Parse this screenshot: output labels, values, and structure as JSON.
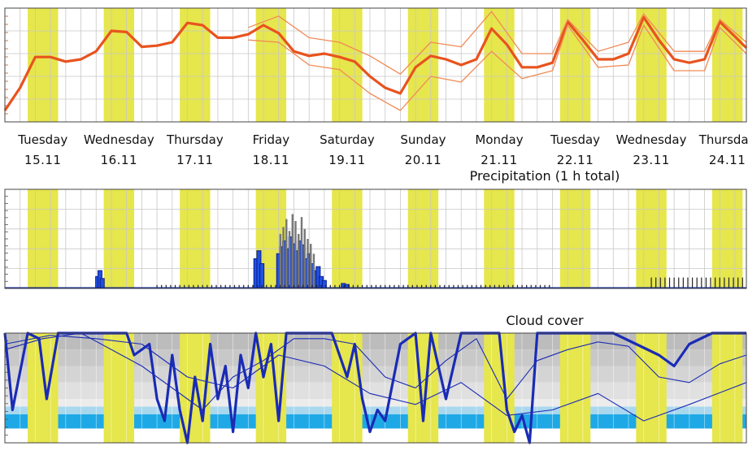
{
  "colors": {
    "daytime_band": "#e6e64d",
    "temperature_main": "#e8531e",
    "temperature_spread": "#f08a55",
    "precip_dark": "#0b1f8f",
    "precip_mid": "#2050e0",
    "precip_gray": "#777777",
    "cloud_main": "#1a2bb5",
    "cloud_low": "#1ea9e6",
    "cloud_mid": "#a9d8ee",
    "cloud_high": "#c9c9c9",
    "grid": "#c8c8c8"
  },
  "days": [
    {
      "name": "Tuesday",
      "date": "15.11"
    },
    {
      "name": "Wednesday",
      "date": "16.11"
    },
    {
      "name": "Thursday",
      "date": "17.11"
    },
    {
      "name": "Friday",
      "date": "18.11"
    },
    {
      "name": "Saturday",
      "date": "19.11"
    },
    {
      "name": "Sunday",
      "date": "20.11"
    },
    {
      "name": "Monday",
      "date": "21.11"
    },
    {
      "name": "Tuesday",
      "date": "22.11"
    },
    {
      "name": "Wednesday",
      "date": "23.11"
    },
    {
      "name": "Thursday",
      "date": "24.11"
    }
  ],
  "chart_data": [
    {
      "type": "line",
      "title": "",
      "x_unit": "day index (0 = 15.11 00:00)",
      "xlim": [
        0,
        9.75
      ],
      "ylim": [
        0,
        1
      ],
      "grid": true,
      "daytime_bands": [
        [
          0.3,
          0.7
        ],
        [
          1.3,
          1.7
        ],
        [
          2.3,
          2.7
        ],
        [
          3.3,
          3.7
        ],
        [
          4.3,
          4.7
        ],
        [
          5.3,
          5.7
        ],
        [
          6.3,
          6.7
        ],
        [
          7.3,
          7.7
        ],
        [
          8.3,
          8.7
        ],
        [
          9.3,
          9.7
        ]
      ],
      "series": [
        {
          "role": "main",
          "x": [
            0,
            0.2,
            0.4,
            0.6,
            0.8,
            1.0,
            1.2,
            1.4,
            1.6,
            1.8,
            2.0,
            2.2,
            2.4,
            2.6,
            2.8,
            3.0,
            3.2,
            3.4,
            3.6,
            3.8,
            4.0,
            4.2,
            4.4,
            4.6,
            4.8,
            5.0,
            5.2,
            5.4,
            5.6,
            5.8,
            6.0,
            6.2,
            6.4,
            6.6,
            6.8,
            7.0,
            7.2,
            7.4,
            7.6,
            7.8,
            8.0,
            8.2,
            8.4,
            8.6,
            8.8,
            9.0,
            9.2,
            9.4,
            9.6,
            9.75
          ],
          "y": [
            0.1,
            0.3,
            0.57,
            0.57,
            0.53,
            0.55,
            0.62,
            0.8,
            0.79,
            0.66,
            0.67,
            0.7,
            0.87,
            0.85,
            0.74,
            0.74,
            0.77,
            0.85,
            0.78,
            0.62,
            0.58,
            0.6,
            0.57,
            0.53,
            0.4,
            0.3,
            0.25,
            0.48,
            0.58,
            0.55,
            0.5,
            0.55,
            0.82,
            0.68,
            0.48,
            0.48,
            0.52,
            0.88,
            0.72,
            0.55,
            0.55,
            0.6,
            0.92,
            0.72,
            0.55,
            0.52,
            0.55,
            0.88,
            0.75,
            0.65
          ]
        },
        {
          "role": "upper",
          "x": [
            3.2,
            3.6,
            4.0,
            4.4,
            4.8,
            5.2,
            5.6,
            6.0,
            6.4,
            6.8,
            7.2,
            7.4,
            7.8,
            8.2,
            8.4,
            8.8,
            9.2,
            9.4,
            9.75
          ],
          "y": [
            0.83,
            0.93,
            0.74,
            0.7,
            0.58,
            0.42,
            0.7,
            0.66,
            0.97,
            0.6,
            0.6,
            0.9,
            0.62,
            0.7,
            0.95,
            0.62,
            0.62,
            0.9,
            0.7
          ]
        },
        {
          "role": "lower",
          "x": [
            3.2,
            3.6,
            4.0,
            4.4,
            4.8,
            5.2,
            5.6,
            6.0,
            6.4,
            6.8,
            7.2,
            7.4,
            7.8,
            8.2,
            8.4,
            8.8,
            9.2,
            9.4,
            9.75
          ],
          "y": [
            0.72,
            0.7,
            0.5,
            0.46,
            0.25,
            0.1,
            0.4,
            0.35,
            0.62,
            0.38,
            0.45,
            0.85,
            0.48,
            0.5,
            0.85,
            0.45,
            0.45,
            0.83,
            0.6
          ]
        }
      ]
    },
    {
      "type": "bar",
      "title": "Precipitation (1 h total)",
      "x_unit": "day index (0 = 15.11 00:00)",
      "xlim": [
        0,
        9.75
      ],
      "ylim": [
        0,
        1
      ],
      "grid": true,
      "daytime_bands": [
        [
          0.3,
          0.7
        ],
        [
          1.3,
          1.7
        ],
        [
          2.3,
          2.7
        ],
        [
          3.3,
          3.7
        ],
        [
          4.3,
          4.7
        ],
        [
          5.3,
          5.7
        ],
        [
          6.3,
          6.7
        ],
        [
          7.3,
          7.7
        ],
        [
          8.3,
          8.7
        ],
        [
          9.3,
          9.7
        ]
      ],
      "series": [
        {
          "name": "",
          "role": "mean",
          "x": [
            1.22,
            1.25,
            1.28,
            3.3,
            3.34,
            3.38,
            3.6,
            3.64,
            3.68,
            3.72,
            3.76,
            3.8,
            3.84,
            3.88,
            3.92,
            3.96,
            4.0,
            4.04,
            4.08,
            4.12,
            4.16,
            4.2,
            4.45,
            4.5
          ],
          "y": [
            0.12,
            0.18,
            0.1,
            0.3,
            0.38,
            0.25,
            0.35,
            0.42,
            0.48,
            0.4,
            0.52,
            0.45,
            0.38,
            0.48,
            0.44,
            0.3,
            0.35,
            0.25,
            0.18,
            0.22,
            0.12,
            0.08,
            0.05,
            0.04
          ]
        },
        {
          "name": "",
          "role": "max",
          "x": [
            3.62,
            3.66,
            3.7,
            3.74,
            3.78,
            3.82,
            3.86,
            3.9,
            3.94,
            3.98,
            4.02,
            4.06
          ],
          "y": [
            0.55,
            0.62,
            0.7,
            0.58,
            0.75,
            0.68,
            0.55,
            0.72,
            0.6,
            0.5,
            0.45,
            0.35
          ]
        },
        {
          "name": "",
          "role": "drizzle",
          "x_start": 2.0,
          "x_end": 7.2,
          "step": 0.06,
          "y": 0.035
        },
        {
          "name": "",
          "role": "drizzle",
          "x_start": 8.5,
          "x_end": 9.75,
          "step": 0.06,
          "y": 0.11
        }
      ]
    },
    {
      "type": "area",
      "title": "Cloud cover",
      "x_unit": "day index (0 = 15.11 00:00)",
      "xlim": [
        0,
        9.75
      ],
      "ylim": [
        0,
        1
      ],
      "grid": true,
      "daytime_bands": [
        [
          0.3,
          0.7
        ],
        [
          1.3,
          1.7
        ],
        [
          2.3,
          2.7
        ],
        [
          3.3,
          3.7
        ],
        [
          4.3,
          4.7
        ],
        [
          5.3,
          5.7
        ],
        [
          6.3,
          6.7
        ],
        [
          7.3,
          7.7
        ],
        [
          8.3,
          8.7
        ],
        [
          9.3,
          9.7
        ]
      ],
      "layers": [
        "high",
        "mid",
        "low"
      ],
      "series": [
        {
          "role": "total",
          "x": [
            0,
            0.1,
            0.3,
            0.45,
            0.55,
            0.7,
            1.0,
            1.3,
            1.6,
            1.7,
            1.9,
            2.0,
            2.1,
            2.2,
            2.3,
            2.4,
            2.5,
            2.6,
            2.7,
            2.8,
            2.9,
            3.0,
            3.1,
            3.2,
            3.3,
            3.4,
            3.5,
            3.6,
            3.7,
            4.0,
            4.3,
            4.5,
            4.6,
            4.7,
            4.8,
            4.9,
            5.0,
            5.2,
            5.4,
            5.5,
            5.6,
            5.8,
            6.0,
            6.1,
            6.3,
            6.5,
            6.6,
            6.7,
            6.8,
            6.9,
            7.0,
            7.2,
            8.0,
            8.3,
            8.6,
            8.8,
            9.0,
            9.3,
            9.75
          ],
          "y": [
            1.0,
            0.3,
            1.0,
            0.95,
            0.4,
            1.0,
            1.0,
            1.0,
            1.0,
            0.8,
            0.9,
            0.4,
            0.2,
            0.8,
            0.3,
            0.0,
            0.6,
            0.2,
            0.9,
            0.4,
            0.7,
            0.1,
            0.8,
            0.5,
            1.0,
            0.6,
            0.9,
            0.2,
            1.0,
            1.0,
            1.0,
            0.6,
            0.9,
            0.4,
            0.1,
            0.3,
            0.2,
            0.9,
            1.0,
            0.2,
            1.0,
            0.4,
            1.0,
            1.0,
            1.0,
            1.0,
            0.3,
            0.1,
            0.25,
            0.0,
            1.0,
            1.0,
            1.0,
            0.9,
            0.8,
            0.7,
            0.9,
            1.0,
            1.0
          ]
        },
        {
          "role": "member",
          "x": [
            0,
            0.5,
            1.0,
            1.8,
            2.2,
            2.6,
            3.0,
            3.4,
            3.8,
            4.2,
            4.6,
            5.0,
            5.4,
            5.8,
            6.2,
            6.6,
            7.0,
            7.4,
            7.8,
            8.2,
            8.6,
            9.0,
            9.4,
            9.75
          ],
          "y": [
            0.85,
            0.95,
            1.0,
            0.7,
            0.5,
            0.3,
            0.6,
            0.75,
            0.95,
            0.95,
            0.9,
            0.6,
            0.5,
            0.75,
            0.95,
            0.4,
            0.75,
            0.85,
            0.92,
            0.88,
            0.6,
            0.55,
            0.72,
            0.8
          ]
        },
        {
          "role": "member",
          "x": [
            0,
            0.6,
            1.2,
            1.8,
            2.4,
            3.0,
            3.6,
            4.2,
            4.8,
            5.4,
            6.0,
            6.6,
            7.2,
            7.8,
            8.4,
            9.0,
            9.75
          ],
          "y": [
            0.9,
            0.98,
            0.95,
            0.9,
            0.6,
            0.5,
            0.8,
            0.7,
            0.45,
            0.35,
            0.55,
            0.25,
            0.3,
            0.45,
            0.2,
            0.35,
            0.55
          ]
        }
      ]
    }
  ]
}
